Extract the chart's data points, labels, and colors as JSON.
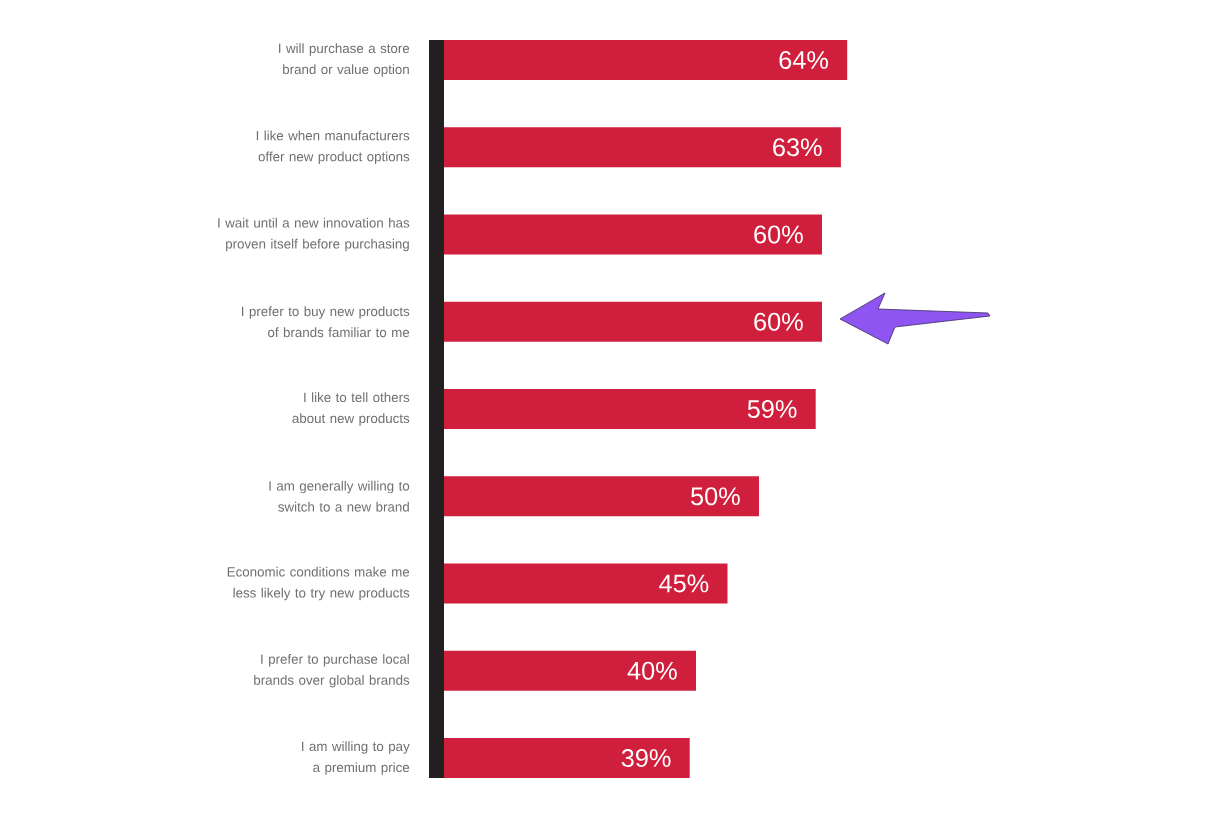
{
  "chart_data": {
    "type": "bar",
    "orientation": "horizontal",
    "categories": [
      "I will purchase a store brand or value option",
      "I like when manufacturers offer new product options",
      "I wait until a new innovation has proven itself before purchasing",
      "I prefer to buy new products of brands familiar to me",
      "I like to tell others about new products",
      "I am generally willing to switch to a new brand",
      "Economic conditions make me less likely to try new products",
      "I prefer to purchase local brands over global brands",
      "I am willing to pay a premium price"
    ],
    "values": [
      64,
      63,
      60,
      60,
      59,
      50,
      45,
      40,
      39
    ],
    "value_labels": [
      "64%",
      "63%",
      "60%",
      "60%",
      "59%",
      "50%",
      "45%",
      "40%",
      "39%"
    ],
    "color": "#d01f3c"
  }
}
